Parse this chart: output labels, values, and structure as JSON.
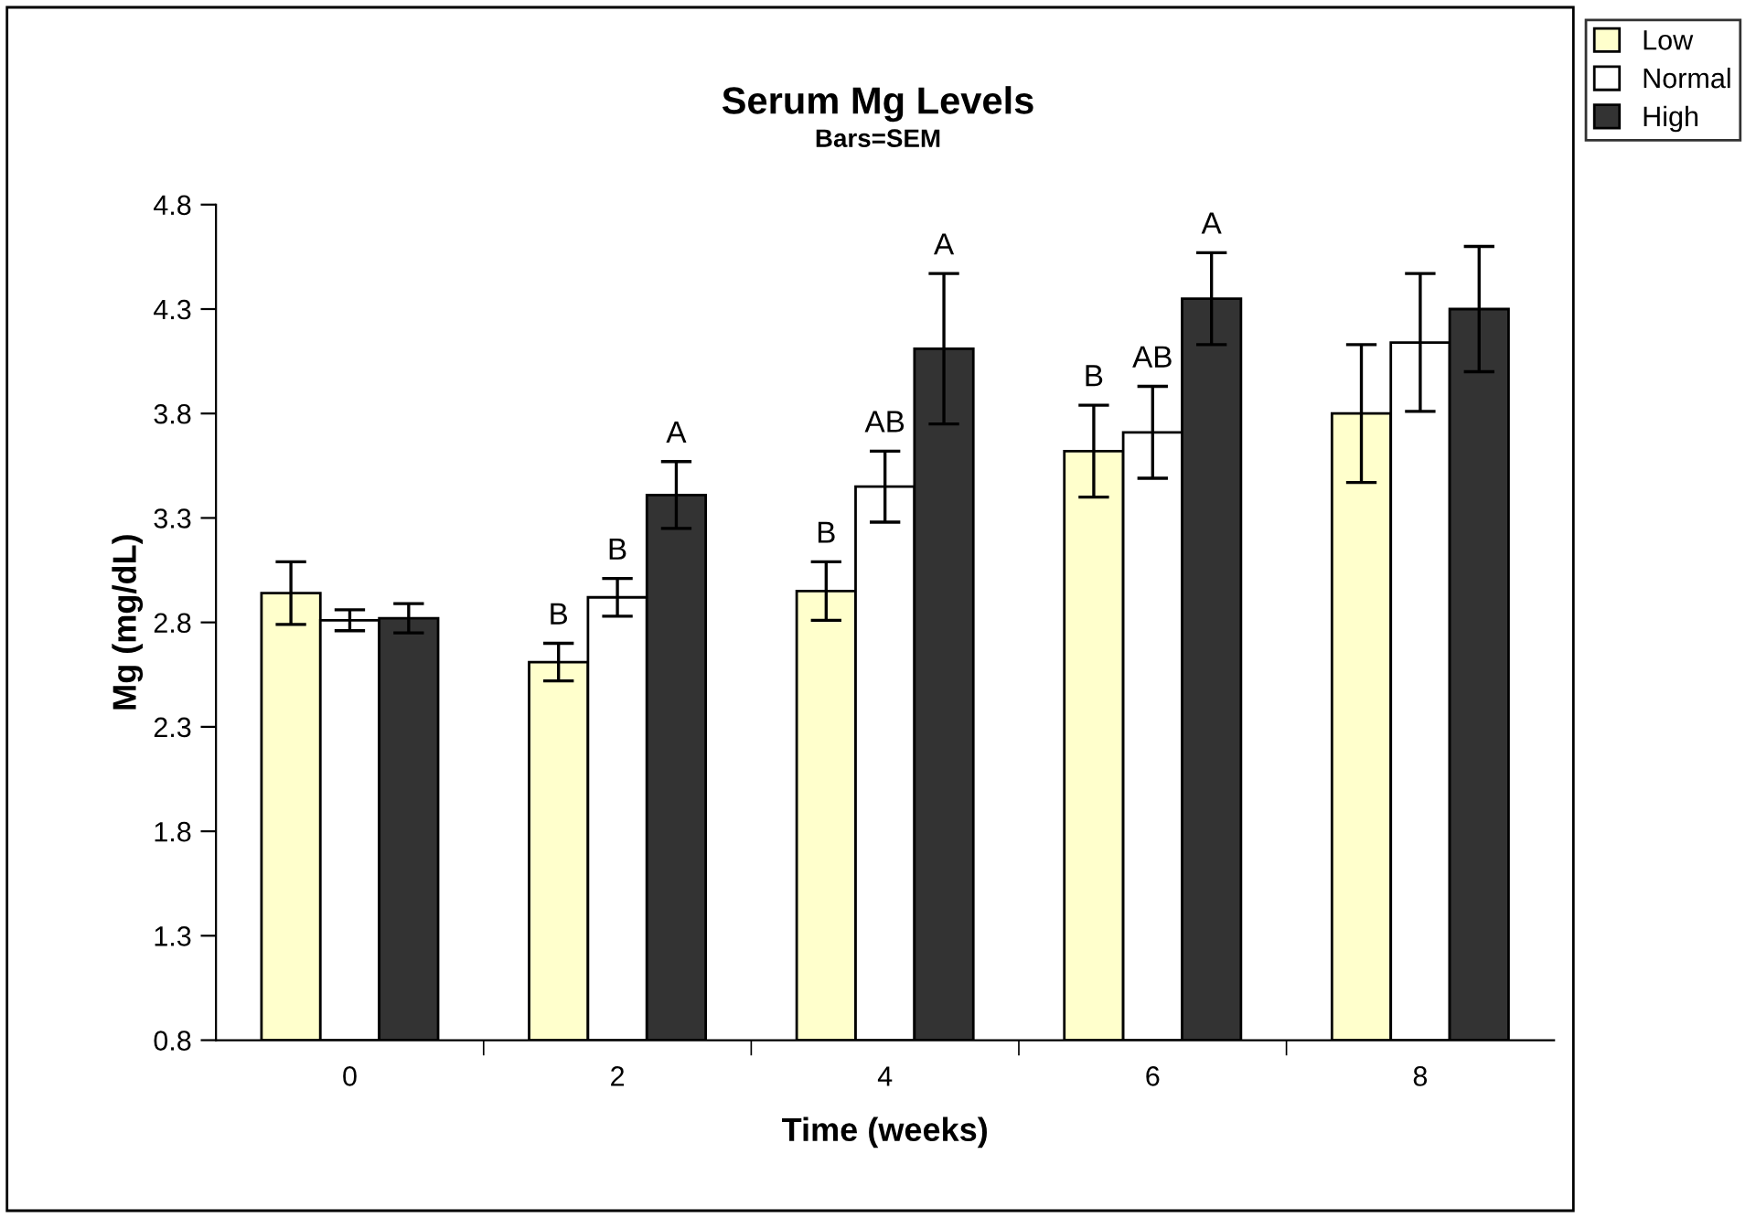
{
  "chart_data": {
    "type": "bar",
    "title": "Serum Mg Levels",
    "subtitle": "Bars=SEM",
    "xlabel": "Time (weeks)",
    "ylabel": "Mg (mg/dL)",
    "categories": [
      "0",
      "2",
      "4",
      "6",
      "8"
    ],
    "series": [
      {
        "name": "Low",
        "color": "#ffffcc",
        "values": [
          2.94,
          2.61,
          2.95,
          3.62,
          3.8
        ],
        "errors": [
          0.15,
          0.09,
          0.14,
          0.22,
          0.33
        ],
        "value_labels": [
          null,
          "B",
          "B",
          "B",
          null
        ]
      },
      {
        "name": "Normal",
        "color": "#ffffff",
        "values": [
          2.81,
          2.92,
          3.45,
          3.71,
          4.14
        ],
        "errors": [
          0.05,
          0.09,
          0.17,
          0.22,
          0.33
        ],
        "value_labels": [
          null,
          "B",
          "AB",
          "AB",
          null
        ]
      },
      {
        "name": "High",
        "color": "#333333",
        "values": [
          2.82,
          3.41,
          4.11,
          4.35,
          4.3
        ],
        "errors": [
          0.07,
          0.16,
          0.36,
          0.22,
          0.3
        ],
        "value_labels": [
          null,
          "A",
          "A",
          "A",
          null
        ]
      }
    ],
    "ylim": [
      0.8,
      4.8
    ],
    "yticks": [
      0.8,
      1.3,
      1.8,
      2.3,
      2.8,
      3.3,
      3.8,
      4.3,
      4.8
    ],
    "grid": false,
    "legend": "top right"
  }
}
